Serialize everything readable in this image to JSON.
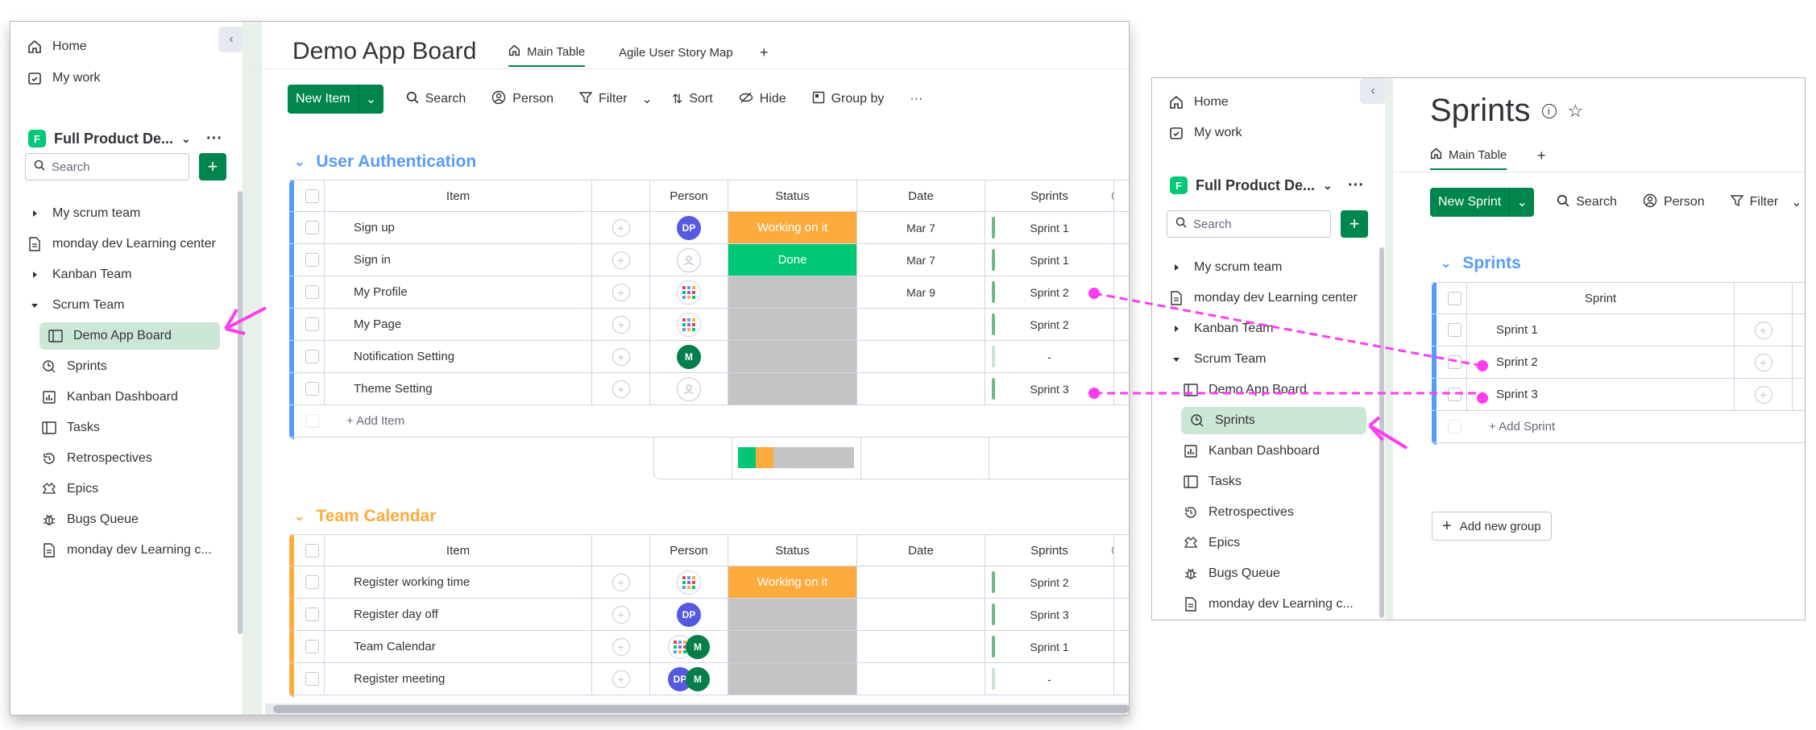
{
  "left_window": {
    "sidebar": {
      "home": "Home",
      "my_work": "My work",
      "workspace": {
        "badge": "F",
        "name": "Full Product De..."
      },
      "search_placeholder": "Search",
      "items": [
        {
          "label": "My scrum team",
          "icon": "triangle-right-icon"
        },
        {
          "label": "monday dev Learning center",
          "icon": "doc-icon"
        },
        {
          "label": "Kanban Team",
          "icon": "triangle-right-icon"
        },
        {
          "label": "Scrum Team",
          "icon": "triangle-down-icon"
        },
        {
          "label": "Demo App Board",
          "icon": "board-icon",
          "active": true
        },
        {
          "label": "Sprints",
          "icon": "sprint-icon"
        },
        {
          "label": "Kanban Dashboard",
          "icon": "dashboard-icon"
        },
        {
          "label": "Tasks",
          "icon": "board-icon"
        },
        {
          "label": "Retrospectives",
          "icon": "history-icon"
        },
        {
          "label": "Epics",
          "icon": "epic-icon"
        },
        {
          "label": "Bugs Queue",
          "icon": "bug-icon"
        },
        {
          "label": "monday dev Learning c...",
          "icon": "doc-icon"
        }
      ]
    },
    "board": {
      "title": "Demo App Board",
      "tabs": [
        "Main Table",
        "Agile User Story Map",
        "+"
      ],
      "toolbar": {
        "new_item": "New Item",
        "search": "Search",
        "person": "Person",
        "filter": "Filter",
        "sort": "Sort",
        "hide": "Hide",
        "group_by": "Group by",
        "more": "···"
      },
      "columns": {
        "item": "Item",
        "person": "Person",
        "status": "Status",
        "date": "Date",
        "sprints": "Sprints"
      },
      "groups": [
        {
          "title": "User Authentication",
          "color": "#579bfc",
          "add_item": "+ Add Item",
          "rows": [
            {
              "item": "Sign up",
              "person": "DP",
              "status": "Working on it",
              "status_color": "#fdab3d",
              "date": "Mar 7",
              "sprint": "Sprint 1"
            },
            {
              "item": "Sign in",
              "person": "empty",
              "status": "Done",
              "status_color": "#00c875",
              "date": "Mar 7",
              "sprint": "Sprint 1"
            },
            {
              "item": "My Profile",
              "person": "multi",
              "status": "",
              "status_color": "#c4c4c4",
              "date": "Mar 9",
              "sprint": "Sprint 2"
            },
            {
              "item": "My Page",
              "person": "multi",
              "status": "",
              "status_color": "#c4c4c4",
              "date": "",
              "sprint": "Sprint 2"
            },
            {
              "item": "Notification Setting",
              "person": "M",
              "status": "",
              "status_color": "#c4c4c4",
              "date": "",
              "sprint": "-"
            },
            {
              "item": "Theme Setting",
              "person": "empty",
              "status": "",
              "status_color": "#c4c4c4",
              "date": "",
              "sprint": "Sprint 3"
            }
          ]
        },
        {
          "title": "Team Calendar",
          "color": "#fdab3d",
          "rows": [
            {
              "item": "Register working time",
              "person": "multi",
              "status": "Working on it",
              "status_color": "#fdab3d",
              "date": "",
              "sprint": "Sprint 2"
            },
            {
              "item": "Register day off",
              "person": "DP",
              "status": "",
              "status_color": "#c4c4c4",
              "date": "",
              "sprint": "Sprint 3"
            },
            {
              "item": "Team Calendar",
              "person": "multi+M",
              "status": "",
              "status_color": "#c4c4c4",
              "date": "",
              "sprint": "Sprint 1"
            },
            {
              "item": "Register meeting",
              "person": "DP+M",
              "status": "",
              "status_color": "#c4c4c4",
              "date": "",
              "sprint": "-"
            }
          ]
        }
      ]
    }
  },
  "right_window": {
    "sidebar": {
      "home": "Home",
      "my_work": "My work",
      "workspace": {
        "badge": "F",
        "name": "Full Product De..."
      },
      "search_placeholder": "Search",
      "items": [
        {
          "label": "My scrum team",
          "icon": "triangle-right-icon"
        },
        {
          "label": "monday dev Learning center",
          "icon": "doc-icon"
        },
        {
          "label": "Kanban Team",
          "icon": "triangle-right-icon"
        },
        {
          "label": "Scrum Team",
          "icon": "triangle-down-icon"
        },
        {
          "label": "Demo App Board",
          "icon": "board-icon"
        },
        {
          "label": "Sprints",
          "icon": "sprint-icon",
          "active": true
        },
        {
          "label": "Kanban Dashboard",
          "icon": "dashboard-icon"
        },
        {
          "label": "Tasks",
          "icon": "board-icon"
        },
        {
          "label": "Retrospectives",
          "icon": "history-icon"
        },
        {
          "label": "Epics",
          "icon": "epic-icon"
        },
        {
          "label": "Bugs Queue",
          "icon": "bug-icon"
        },
        {
          "label": "monday dev Learning c...",
          "icon": "doc-icon"
        }
      ]
    },
    "board": {
      "title": "Sprints",
      "tabs": [
        "Main Table",
        "+"
      ],
      "toolbar": {
        "new_item": "New Sprint",
        "search": "Search",
        "person": "Person",
        "filter": "Filter"
      },
      "group_title": "Sprints",
      "column": "Sprint",
      "rows": [
        "Sprint 1",
        "Sprint 2",
        "Sprint 3"
      ],
      "add_item": "+ Add Sprint",
      "add_group": "Add new group"
    }
  },
  "colors": {
    "brand_green": "#00854d",
    "annotation": "#ff3df0"
  }
}
